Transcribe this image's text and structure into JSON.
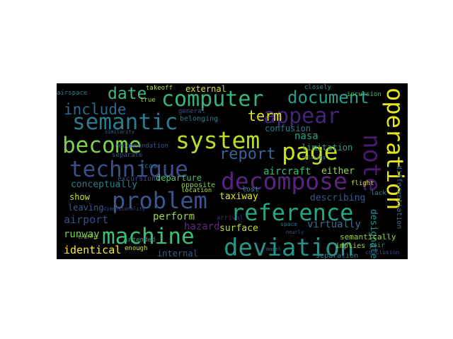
{
  "wordcloud": {
    "background": "#000000",
    "colormap": "viridis",
    "words": [
      {
        "text": "deviation",
        "color": "#2a9389"
      },
      {
        "text": "decompose",
        "color": "#5a247e"
      },
      {
        "text": "reference",
        "color": "#27a585"
      },
      {
        "text": "machine",
        "color": "#3fbc75"
      },
      {
        "text": "problem",
        "color": "#3a5590"
      },
      {
        "text": "system",
        "color": "#b8de2a"
      },
      {
        "text": "technique",
        "color": "#3c4f8b"
      },
      {
        "text": "computer",
        "color": "#36b67a"
      },
      {
        "text": "semantic",
        "color": "#2b7b8e"
      },
      {
        "text": "appear",
        "color": "#452476"
      },
      {
        "text": "page",
        "color": "#c7e11f"
      },
      {
        "text": "become",
        "color": "#7cd24f"
      },
      {
        "text": "operation",
        "color": "#e6e41d"
      },
      {
        "text": "note",
        "color": "#4a1a6c"
      },
      {
        "text": "document",
        "color": "#2c9d8b"
      },
      {
        "text": "include",
        "color": "#2e6a8e"
      },
      {
        "text": "date",
        "color": "#40b77b"
      },
      {
        "text": "report",
        "color": "#356594"
      },
      {
        "text": "term",
        "color": "#e1e41e"
      },
      {
        "text": "external",
        "color": "#d6e21d"
      },
      {
        "text": "conceptually",
        "color": "#2a7e8e"
      },
      {
        "text": "perform",
        "color": "#9bd73b"
      },
      {
        "text": "show",
        "color": "#c6e022"
      },
      {
        "text": "leaving",
        "color": "#3a5b8e"
      },
      {
        "text": "airport",
        "color": "#374f8b"
      },
      {
        "text": "runway",
        "color": "#7ad151"
      },
      {
        "text": "identical",
        "color": "#fde725"
      },
      {
        "text": "hazard",
        "color": "#5c2a7e"
      },
      {
        "text": "taxiway",
        "color": "#e5e419"
      },
      {
        "text": "surface",
        "color": "#c1df24"
      },
      {
        "text": "virtually",
        "color": "#3e6e8f"
      },
      {
        "text": "describing",
        "color": "#38598b"
      },
      {
        "text": "aircraft",
        "color": "#3fbb73"
      },
      {
        "text": "either",
        "color": "#96d843"
      },
      {
        "text": "nasa",
        "color": "#30a487"
      },
      {
        "text": "limitation",
        "color": "#359b8a"
      },
      {
        "text": "confusion",
        "color": "#287b8e"
      },
      {
        "text": "designated",
        "color": "#2a908c"
      },
      {
        "text": "semantically",
        "color": "#9ad83b"
      },
      {
        "text": "separation",
        "color": "#2e7f8e"
      },
      {
        "text": "implies",
        "color": "#a3da37"
      },
      {
        "text": "conclusion",
        "color": "#3d4c8a"
      },
      {
        "text": "pair",
        "color": "#2c8f8a"
      },
      {
        "text": "internal",
        "color": "#3a5d8f"
      },
      {
        "text": "enough",
        "color": "#c9e120"
      },
      {
        "text": "intended",
        "color": "#2f9d8a"
      },
      {
        "text": "opposite",
        "color": "#8ed645"
      },
      {
        "text": "location",
        "color": "#a9db33"
      },
      {
        "text": "departure",
        "color": "#4dc36a"
      },
      {
        "text": "separate",
        "color": "#39568c"
      },
      {
        "text": "tcas",
        "color": "#2f6c8e"
      },
      {
        "text": "excursion",
        "color": "#3e4b89"
      },
      {
        "text": "recommendation",
        "color": "#3a5a8c"
      },
      {
        "text": "lost",
        "color": "#2a8c8b"
      },
      {
        "text": "general",
        "color": "#3b4f8b"
      },
      {
        "text": "belonging",
        "color": "#2b7d8e"
      },
      {
        "text": "flight",
        "color": "#d3e21b"
      },
      {
        "text": "true",
        "color": "#9dd93a"
      },
      {
        "text": "takeoff",
        "color": "#b2dd2d"
      },
      {
        "text": "airspace",
        "color": "#2f7c8e"
      },
      {
        "text": "closely",
        "color": "#2a968b"
      },
      {
        "text": "incursion",
        "color": "#4cc26c"
      },
      {
        "text": "differentiation",
        "color": "#3c6f90"
      },
      {
        "text": "lack",
        "color": "#2c8a8c"
      },
      {
        "text": "arrival",
        "color": "#4a2d7f"
      },
      {
        "text": "space",
        "color": "#28798e"
      },
      {
        "text": "nearly",
        "color": "#3a548c"
      },
      {
        "text": "relating",
        "color": "#2f6e8e"
      },
      {
        "text": "traffic",
        "color": "#8fd744"
      },
      {
        "text": "similarity",
        "color": "#30688e"
      },
      {
        "text": "dimensionality",
        "color": "#3e4a89"
      },
      {
        "text": "model",
        "color": "#2b748e"
      }
    ]
  }
}
